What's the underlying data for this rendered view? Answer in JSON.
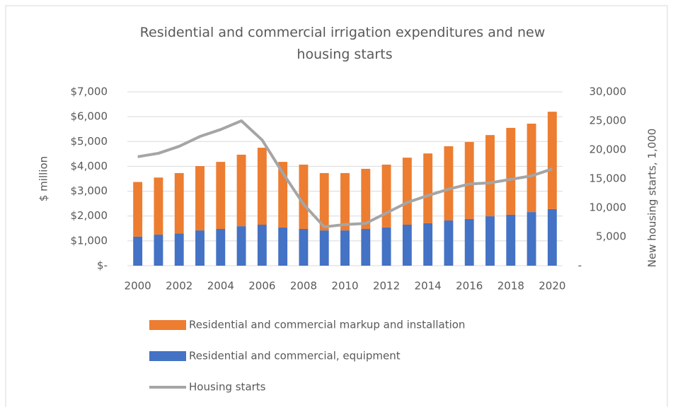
{
  "chart_data": {
    "type": "bar",
    "title": "Residential and commercial irrigation expenditures and new housing starts",
    "ylabel": "$ million",
    "y2label": "New housing starts, 1,000",
    "categories": [
      "2000",
      null,
      "2002",
      null,
      "2004",
      null,
      "2006",
      null,
      "2008",
      null,
      "2010",
      null,
      "2012",
      null,
      "2014",
      null,
      "2016",
      null,
      "2018",
      null,
      "2020"
    ],
    "series": [
      {
        "name": "Residential and commercial markup and installation",
        "color": "#ED7D31",
        "values": [
          2200,
          2300,
          2430,
          2590,
          2700,
          2880,
          3100,
          2640,
          2590,
          2310,
          2310,
          2420,
          2530,
          2700,
          2810,
          2990,
          3100,
          3270,
          3500,
          3560,
          3920
        ]
      },
      {
        "name": "Residential and commercial, equipment",
        "color": "#4472C4",
        "values": [
          1170,
          1250,
          1300,
          1420,
          1480,
          1590,
          1650,
          1540,
          1480,
          1420,
          1420,
          1480,
          1540,
          1650,
          1710,
          1820,
          1880,
          1990,
          2050,
          2160,
          2280
        ]
      },
      {
        "name": "Housing starts",
        "color": "#A5A5A5",
        "type": "line",
        "axis": "y2",
        "values": [
          18800,
          19400,
          20600,
          22300,
          23500,
          25000,
          21700,
          16000,
          10600,
          6700,
          7100,
          7300,
          9100,
          10900,
          12100,
          13200,
          14100,
          14300,
          14900,
          15500,
          16700
        ]
      }
    ],
    "stacked": true,
    "ylim": [
      0,
      7000
    ],
    "yticks": [
      {
        "value": 0,
        "label": "$-"
      },
      {
        "value": 1000,
        "label": "$1,000"
      },
      {
        "value": 2000,
        "label": "$2,000"
      },
      {
        "value": 3000,
        "label": "$3,000"
      },
      {
        "value": 4000,
        "label": "$4,000"
      },
      {
        "value": 5000,
        "label": "$5,000"
      },
      {
        "value": 6000,
        "label": "$6,000"
      },
      {
        "value": 7000,
        "label": "$7,000"
      }
    ],
    "y2lim": [
      0,
      30000
    ],
    "y2ticks": [
      {
        "value": 0,
        "label": "-"
      },
      {
        "value": 5000,
        "label": "5,000"
      },
      {
        "value": 10000,
        "label": "10,000"
      },
      {
        "value": 15000,
        "label": "15,000"
      },
      {
        "value": 20000,
        "label": "20,000"
      },
      {
        "value": 25000,
        "label": "25,000"
      },
      {
        "value": 30000,
        "label": "30,000"
      }
    ],
    "grid": true,
    "legend": "bottom"
  }
}
